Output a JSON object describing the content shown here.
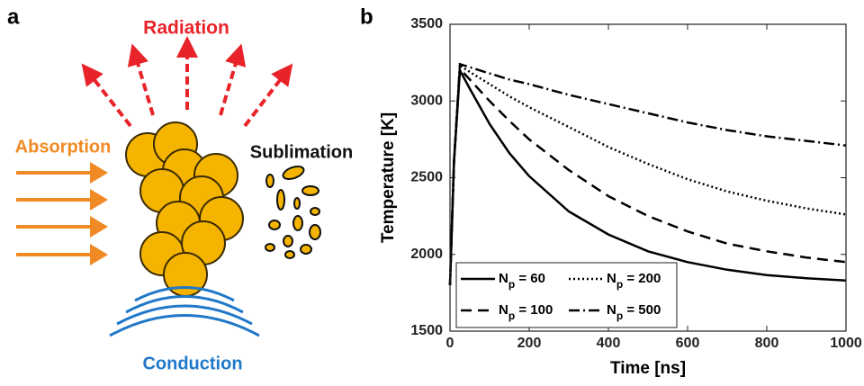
{
  "panel_labels": [
    "a",
    "b"
  ],
  "diagram": {
    "radiation": "Radiation",
    "absorption": "Absorption",
    "sublimation": "Sublimation",
    "conduction": "Conduction"
  },
  "chart_data": {
    "type": "line",
    "xlabel": "Time [ns]",
    "ylabel": "Temperature [K]",
    "x": [
      0,
      10,
      25,
      50,
      100,
      150,
      200,
      300,
      400,
      500,
      600,
      700,
      800,
      900,
      1000
    ],
    "series": [
      {
        "name": "Np = 60",
        "color": "#000000",
        "dash": "solid",
        "values": [
          1800,
          2600,
          3200,
          3080,
          2850,
          2660,
          2510,
          2280,
          2130,
          2020,
          1950,
          1900,
          1865,
          1845,
          1830
        ]
      },
      {
        "name": "Np = 100",
        "color": "#000000",
        "dash": "dashed",
        "values": [
          1800,
          2600,
          3210,
          3140,
          3000,
          2870,
          2750,
          2550,
          2380,
          2250,
          2150,
          2070,
          2020,
          1980,
          1950
        ]
      },
      {
        "name": "Np = 200",
        "color": "#000000",
        "dash": "dotted",
        "values": [
          1800,
          2600,
          3230,
          3190,
          3110,
          3030,
          2960,
          2830,
          2700,
          2590,
          2490,
          2410,
          2350,
          2300,
          2260
        ]
      },
      {
        "name": "Np = 500",
        "color": "#000000",
        "dash": "dashdot",
        "values": [
          1800,
          2600,
          3240,
          3220,
          3180,
          3140,
          3110,
          3040,
          2980,
          2920,
          2860,
          2810,
          2770,
          2740,
          2710
        ]
      }
    ],
    "xlim": [
      0,
      1000
    ],
    "xticks": [
      0,
      200,
      400,
      600,
      800,
      1000
    ],
    "ylim": [
      1500,
      3500
    ],
    "yticks": [
      1500,
      2000,
      2500,
      3000,
      3500
    ],
    "legend": "lower left",
    "grid": false
  }
}
